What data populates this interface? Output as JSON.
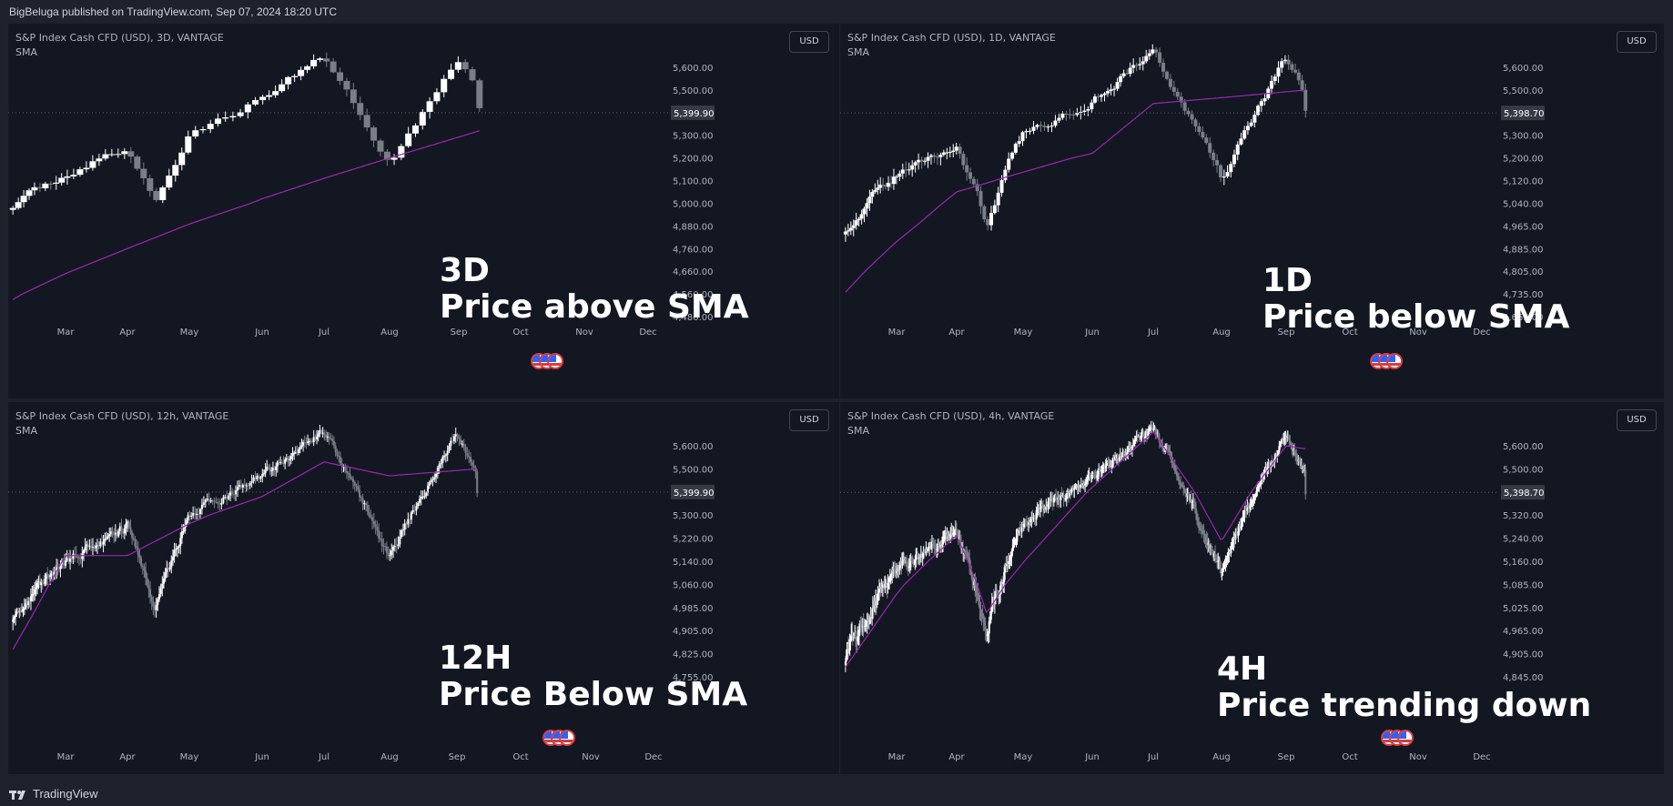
{
  "header": {
    "published": "BigBeluga published on TradingView.com, Sep 07, 2024 18:20 UTC"
  },
  "footer": {
    "brand": "TradingView"
  },
  "colors": {
    "background": "#131722",
    "sma": "#9c27b0",
    "candle_up": "#ffffff",
    "candle_down": "#7a7e87",
    "grid_text": "#b2b5be"
  },
  "panels": [
    {
      "title": "S&P Index Cash CFD (USD), 3D, VANTAGE",
      "indicator": "SMA",
      "currency_button": "USD",
      "price_label": "5,399.90",
      "annotation_line1": "3D",
      "annotation_line2": "Price above SMA",
      "y_ticks": [
        "5,600.00",
        "5,500.00",
        "5,400.00",
        "5,300.00",
        "5,200.00",
        "5,100.00",
        "5,000.00",
        "4,880.00",
        "4,760.00",
        "4,660.00",
        "4,560.00",
        "4,480.00"
      ],
      "x_ticks": [
        "Mar",
        "Apr",
        "May",
        "Jun",
        "Jul",
        "Aug",
        "Sep",
        "Oct",
        "Nov",
        "Dec"
      ]
    },
    {
      "title": "S&P Index Cash CFD (USD), 1D, VANTAGE",
      "indicator": "SMA",
      "currency_button": "USD",
      "price_label": "5,398.70",
      "annotation_line1": "1D",
      "annotation_line2": "Price below SMA",
      "y_ticks": [
        "5,600.00",
        "5,500.00",
        "5,400.00",
        "5,300.00",
        "5,200.00",
        "5,120.00",
        "5,040.00",
        "4,965.00",
        "4,885.00",
        "4,805.00",
        "4,735.00",
        "4,665.00"
      ],
      "x_ticks": [
        "Mar",
        "Apr",
        "May",
        "Jun",
        "Jul",
        "Aug",
        "Sep",
        "Oct",
        "Nov",
        "Dec"
      ]
    },
    {
      "title": "S&P Index Cash CFD (USD), 12h, VANTAGE",
      "indicator": "SMA",
      "currency_button": "USD",
      "price_label": "5,399.90",
      "annotation_line1": "12H",
      "annotation_line2": "Price Below SMA",
      "y_ticks": [
        "5,600.00",
        "5,500.00",
        "5,400.00",
        "5,300.00",
        "5,220.00",
        "5,140.00",
        "5,060.00",
        "4,985.00",
        "4,905.00",
        "4,825.00",
        "4,755.00"
      ],
      "x_ticks": [
        "Mar",
        "Apr",
        "May",
        "Jun",
        "Jul",
        "Aug",
        "Sep",
        "Oct",
        "Nov",
        "Dec"
      ]
    },
    {
      "title": "S&P Index Cash CFD (USD), 4h, VANTAGE",
      "indicator": "SMA",
      "currency_button": "USD",
      "price_label": "5,398.70",
      "annotation_line1": "4H",
      "annotation_line2": "Price trending down",
      "y_ticks": [
        "5,600.00",
        "5,500.00",
        "5,400.00",
        "5,320.00",
        "5,240.00",
        "5,160.00",
        "5,085.00",
        "5,025.00",
        "4,965.00",
        "4,905.00",
        "4,845.00"
      ],
      "x_ticks": [
        "Mar",
        "Apr",
        "May",
        "Jun",
        "Jul",
        "Aug",
        "Sep",
        "Oct",
        "Nov",
        "Dec"
      ]
    }
  ],
  "chart_data": [
    {
      "type": "candlestick",
      "title": "S&P Index Cash CFD (USD), 3D, VANTAGE",
      "x_start": "Feb 2024",
      "x_end": "Sep 2024",
      "price_start": 4990,
      "price_end": 5420,
      "last_price": 5399.9,
      "key_points": [
        {
          "x": "Feb",
          "close": 4990
        },
        {
          "x": "Mar",
          "close": 5130
        },
        {
          "x": "Apr",
          "close": 5240
        },
        {
          "x": "Apr",
          "close": 5010
        },
        {
          "x": "May",
          "close": 5300
        },
        {
          "x": "Jun",
          "close": 5460
        },
        {
          "x": "Jul",
          "close": 5660
        },
        {
          "x": "Aug",
          "close": 5190
        },
        {
          "x": "Sep",
          "close": 5640
        },
        {
          "x": "Sep",
          "close": 5420
        }
      ],
      "sma": [
        {
          "x": "Feb",
          "value": 4540
        },
        {
          "x": "Apr",
          "value": 4760
        },
        {
          "x": "Jun",
          "value": 5020
        },
        {
          "x": "Aug",
          "value": 5200
        },
        {
          "x": "Sep",
          "value": 5320
        }
      ],
      "ylim": [
        4450,
        5700
      ]
    },
    {
      "type": "candlestick",
      "title": "S&P Index Cash CFD (USD), 1D, VANTAGE",
      "x_start": "Feb 2024",
      "x_end": "Sep 2024",
      "price_start": 4960,
      "price_end": 5408,
      "last_price": 5398.7,
      "key_points": [
        {
          "x": "Feb",
          "close": 4960
        },
        {
          "x": "Mar",
          "close": 5140
        },
        {
          "x": "Apr",
          "close": 5250
        },
        {
          "x": "Apr",
          "close": 4975
        },
        {
          "x": "May",
          "close": 5300
        },
        {
          "x": "Jun",
          "close": 5460
        },
        {
          "x": "Jul",
          "close": 5670
        },
        {
          "x": "Aug",
          "close": 5120
        },
        {
          "x": "Sep",
          "close": 5640
        },
        {
          "x": "Sep",
          "close": 5408
        }
      ],
      "sma": [
        {
          "x": "Feb",
          "value": 4740
        },
        {
          "x": "Apr",
          "value": 5080
        },
        {
          "x": "Jun",
          "value": 5220
        },
        {
          "x": "Jul",
          "value": 5440
        },
        {
          "x": "Sep",
          "value": 5500
        }
      ],
      "ylim": [
        4640,
        5700
      ]
    },
    {
      "type": "candlestick",
      "title": "S&P Index Cash CFD (USD), 12h, VANTAGE",
      "x_start": "Feb 2024",
      "x_end": "Sep 2024",
      "price_start": 4960,
      "price_end": 5395,
      "last_price": 5399.9,
      "key_points": [
        {
          "x": "Feb",
          "close": 4960
        },
        {
          "x": "Mar",
          "close": 5140
        },
        {
          "x": "Apr",
          "close": 5260
        },
        {
          "x": "Apr",
          "close": 4985
        },
        {
          "x": "May",
          "close": 5300
        },
        {
          "x": "Jun",
          "close": 5470
        },
        {
          "x": "Jul",
          "close": 5660
        },
        {
          "x": "Aug",
          "close": 5150
        },
        {
          "x": "Sep",
          "close": 5640
        },
        {
          "x": "Sep",
          "close": 5395
        }
      ],
      "sma": [
        {
          "x": "Feb",
          "value": 4840
        },
        {
          "x": "Mar",
          "value": 5160
        },
        {
          "x": "Apr",
          "value": 5160
        },
        {
          "x": "Jun",
          "value": 5380
        },
        {
          "x": "Jul",
          "value": 5530
        },
        {
          "x": "Aug",
          "value": 5470
        },
        {
          "x": "Sep",
          "value": 5500
        }
      ],
      "ylim": [
        4740,
        5700
      ]
    },
    {
      "type": "candlestick",
      "title": "S&P Index Cash CFD (USD), 4h, VANTAGE",
      "x_start": "Feb 2024",
      "x_end": "Sep 2024",
      "price_start": 4900,
      "price_end": 5392,
      "last_price": 5398.7,
      "key_points": [
        {
          "x": "Feb",
          "close": 4900
        },
        {
          "x": "Mar",
          "close": 5140
        },
        {
          "x": "Apr",
          "close": 5260
        },
        {
          "x": "Apr",
          "close": 4975
        },
        {
          "x": "May",
          "close": 5300
        },
        {
          "x": "Jun",
          "close": 5460
        },
        {
          "x": "Jul",
          "close": 5670
        },
        {
          "x": "Aug",
          "close": 5130
        },
        {
          "x": "Sep",
          "close": 5650
        },
        {
          "x": "Sep",
          "close": 5392
        }
      ],
      "sma": [
        {
          "x": "Feb",
          "value": 4870
        },
        {
          "x": "Apr",
          "value": 5250
        },
        {
          "x": "Apr",
          "value": 5010
        },
        {
          "x": "Jun",
          "value": 5420
        },
        {
          "x": "Jul",
          "value": 5660
        },
        {
          "x": "Aug",
          "value": 5230
        },
        {
          "x": "Sep",
          "value": 5600
        },
        {
          "x": "Sep",
          "value": 5580
        }
      ],
      "ylim": [
        4830,
        5700
      ]
    }
  ]
}
